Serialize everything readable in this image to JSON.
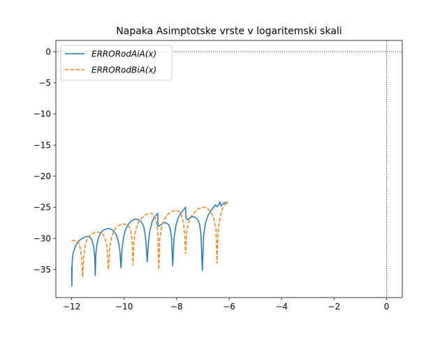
{
  "chart_data": {
    "type": "line",
    "title": "Napaka Asimptotske vrste v logaritemski skali",
    "xlabel": "",
    "ylabel": "",
    "xlim": [
      -12.6,
      0.6
    ],
    "ylim": [
      -39.5,
      1.8
    ],
    "xticks": [
      -12,
      -10,
      -8,
      -6,
      -4,
      -2,
      0
    ],
    "xtick_labels": [
      "−12",
      "−10",
      "−8",
      "−6",
      "−4",
      "−2",
      "0"
    ],
    "yticks": [
      0,
      -5,
      -10,
      -15,
      -20,
      -25,
      -30,
      -35
    ],
    "ytick_labels": [
      "0",
      "−5",
      "−10",
      "−15",
      "−20",
      "−25",
      "−30",
      "−35"
    ],
    "grid": false,
    "reference_lines": {
      "x": 0,
      "y": 0,
      "style": "dotted"
    },
    "legend": {
      "placement": "top-left"
    },
    "series": [
      {
        "name": "ERRORodAiA(x)",
        "legend_label": "ERRORodAiA(x)",
        "color": "#1f77b4",
        "dash": "solid",
        "points": [
          [
            -12.0,
            -34.5
          ],
          [
            -11.99,
            -37.7
          ],
          [
            -11.98,
            -33.8
          ],
          [
            -11.95,
            -32.5
          ],
          [
            -11.9,
            -31.8
          ],
          [
            -11.85,
            -31.2
          ],
          [
            -11.8,
            -30.8
          ],
          [
            -11.7,
            -30.3
          ],
          [
            -11.6,
            -30.0
          ],
          [
            -11.5,
            -29.8
          ],
          [
            -11.4,
            -29.7
          ],
          [
            -11.3,
            -29.8
          ],
          [
            -11.22,
            -30.3
          ],
          [
            -11.16,
            -31.3
          ],
          [
            -11.12,
            -32.8
          ],
          [
            -11.1,
            -36.0
          ],
          [
            -11.08,
            -32.8
          ],
          [
            -11.04,
            -31.0
          ],
          [
            -10.98,
            -29.9
          ],
          [
            -10.9,
            -29.2
          ],
          [
            -10.8,
            -28.7
          ],
          [
            -10.7,
            -28.5
          ],
          [
            -10.6,
            -28.4
          ],
          [
            -10.5,
            -28.5
          ],
          [
            -10.4,
            -28.8
          ],
          [
            -10.3,
            -29.4
          ],
          [
            -10.22,
            -30.5
          ],
          [
            -10.16,
            -32.0
          ],
          [
            -10.12,
            -34.8
          ],
          [
            -10.08,
            -31.8
          ],
          [
            -10.02,
            -29.8
          ],
          [
            -9.95,
            -28.6
          ],
          [
            -9.85,
            -27.8
          ],
          [
            -9.75,
            -27.3
          ],
          [
            -9.65,
            -27.0
          ],
          [
            -9.55,
            -26.9
          ],
          [
            -9.45,
            -27.0
          ],
          [
            -9.35,
            -27.3
          ],
          [
            -9.26,
            -28.0
          ],
          [
            -9.2,
            -29.3
          ],
          [
            -9.15,
            -31.5
          ],
          [
            -9.12,
            -33.8
          ],
          [
            -9.08,
            -31.0
          ],
          [
            -9.02,
            -28.8
          ],
          [
            -8.94,
            -27.4
          ],
          [
            -8.84,
            -26.5
          ],
          [
            -8.74,
            -26.1
          ],
          [
            -8.72,
            -25.9
          ],
          [
            -8.71,
            -28.0
          ],
          [
            -8.66,
            -28.0
          ],
          [
            -8.6,
            -27.8
          ],
          [
            -8.5,
            -27.5
          ],
          [
            -8.4,
            -27.5
          ],
          [
            -8.3,
            -27.8
          ],
          [
            -8.24,
            -28.5
          ],
          [
            -8.19,
            -30.0
          ],
          [
            -8.15,
            -34.5
          ],
          [
            -8.1,
            -30.0
          ],
          [
            -8.03,
            -28.0
          ],
          [
            -7.95,
            -26.8
          ],
          [
            -7.85,
            -26.0
          ],
          [
            -7.75,
            -25.5
          ],
          [
            -7.66,
            -25.0
          ],
          [
            -7.64,
            -26.8
          ],
          [
            -7.58,
            -27.0
          ],
          [
            -7.5,
            -26.7
          ],
          [
            -7.4,
            -26.5
          ],
          [
            -7.3,
            -26.6
          ],
          [
            -7.2,
            -26.9
          ],
          [
            -7.12,
            -27.8
          ],
          [
            -7.07,
            -29.5
          ],
          [
            -7.02,
            -35.2
          ],
          [
            -6.97,
            -29.5
          ],
          [
            -6.9,
            -27.5
          ],
          [
            -6.8,
            -26.3
          ],
          [
            -6.7,
            -25.6
          ],
          [
            -6.6,
            -25.0
          ],
          [
            -6.52,
            -24.6
          ],
          [
            -6.46,
            -24.9
          ],
          [
            -6.4,
            -24.6
          ],
          [
            -6.35,
            -24.2
          ],
          [
            -6.3,
            -24.8
          ],
          [
            -6.25,
            -24.5
          ],
          [
            -6.2,
            -24.3
          ],
          [
            -6.12,
            -24.2
          ],
          [
            -6.05,
            -24.4
          ]
        ]
      },
      {
        "name": "ERRORodBiA(x)",
        "legend_label": "ERRORodBiA(x)",
        "color": "#ff7f0e",
        "dash": "dashed",
        "points": [
          [
            -12.0,
            -30.3
          ],
          [
            -11.9,
            -30.35
          ],
          [
            -11.8,
            -30.4
          ],
          [
            -11.72,
            -30.8
          ],
          [
            -11.66,
            -31.8
          ],
          [
            -11.62,
            -33.2
          ],
          [
            -11.58,
            -36.2
          ],
          [
            -11.54,
            -33.0
          ],
          [
            -11.48,
            -31.0
          ],
          [
            -11.38,
            -29.8
          ],
          [
            -11.25,
            -29.3
          ],
          [
            -11.1,
            -29.0
          ],
          [
            -10.95,
            -29.0
          ],
          [
            -10.82,
            -29.3
          ],
          [
            -10.72,
            -30.0
          ],
          [
            -10.65,
            -31.3
          ],
          [
            -10.6,
            -35.0
          ],
          [
            -10.55,
            -31.5
          ],
          [
            -10.48,
            -29.8
          ],
          [
            -10.38,
            -28.7
          ],
          [
            -10.25,
            -28.0
          ],
          [
            -10.1,
            -27.7
          ],
          [
            -9.95,
            -27.7
          ],
          [
            -9.85,
            -27.9
          ],
          [
            -9.76,
            -28.5
          ],
          [
            -9.7,
            -30.0
          ],
          [
            -9.66,
            -34.3
          ],
          [
            -9.62,
            -30.2
          ],
          [
            -9.55,
            -28.5
          ],
          [
            -9.45,
            -27.4
          ],
          [
            -9.32,
            -26.7
          ],
          [
            -9.18,
            -26.2
          ],
          [
            -9.05,
            -26.0
          ],
          [
            -8.95,
            -26.0
          ],
          [
            -8.85,
            -26.3
          ],
          [
            -8.78,
            -27.2
          ],
          [
            -8.72,
            -28.8
          ],
          [
            -8.68,
            -35.0
          ],
          [
            -8.64,
            -30.0
          ],
          [
            -8.57,
            -28.0
          ],
          [
            -8.48,
            -27.0
          ],
          [
            -8.35,
            -26.2
          ],
          [
            -8.2,
            -25.7
          ],
          [
            -8.05,
            -25.5
          ],
          [
            -7.92,
            -25.6
          ],
          [
            -7.82,
            -26.2
          ],
          [
            -7.74,
            -27.5
          ],
          [
            -7.69,
            -29.5
          ],
          [
            -7.66,
            -32.5
          ],
          [
            -7.62,
            -29.0
          ],
          [
            -7.55,
            -27.5
          ],
          [
            -7.45,
            -26.5
          ],
          [
            -7.32,
            -25.8
          ],
          [
            -7.18,
            -25.3
          ],
          [
            -7.05,
            -25.0
          ],
          [
            -6.92,
            -25.0
          ],
          [
            -6.8,
            -25.3
          ],
          [
            -6.68,
            -25.8
          ],
          [
            -6.58,
            -26.8
          ],
          [
            -6.5,
            -28.5
          ],
          [
            -6.46,
            -34.0
          ],
          [
            -6.42,
            -29.0
          ],
          [
            -6.36,
            -27.0
          ],
          [
            -6.28,
            -25.5
          ],
          [
            -6.18,
            -24.6
          ],
          [
            -6.1,
            -24.2
          ],
          [
            -6.04,
            -24.0
          ]
        ]
      }
    ]
  }
}
